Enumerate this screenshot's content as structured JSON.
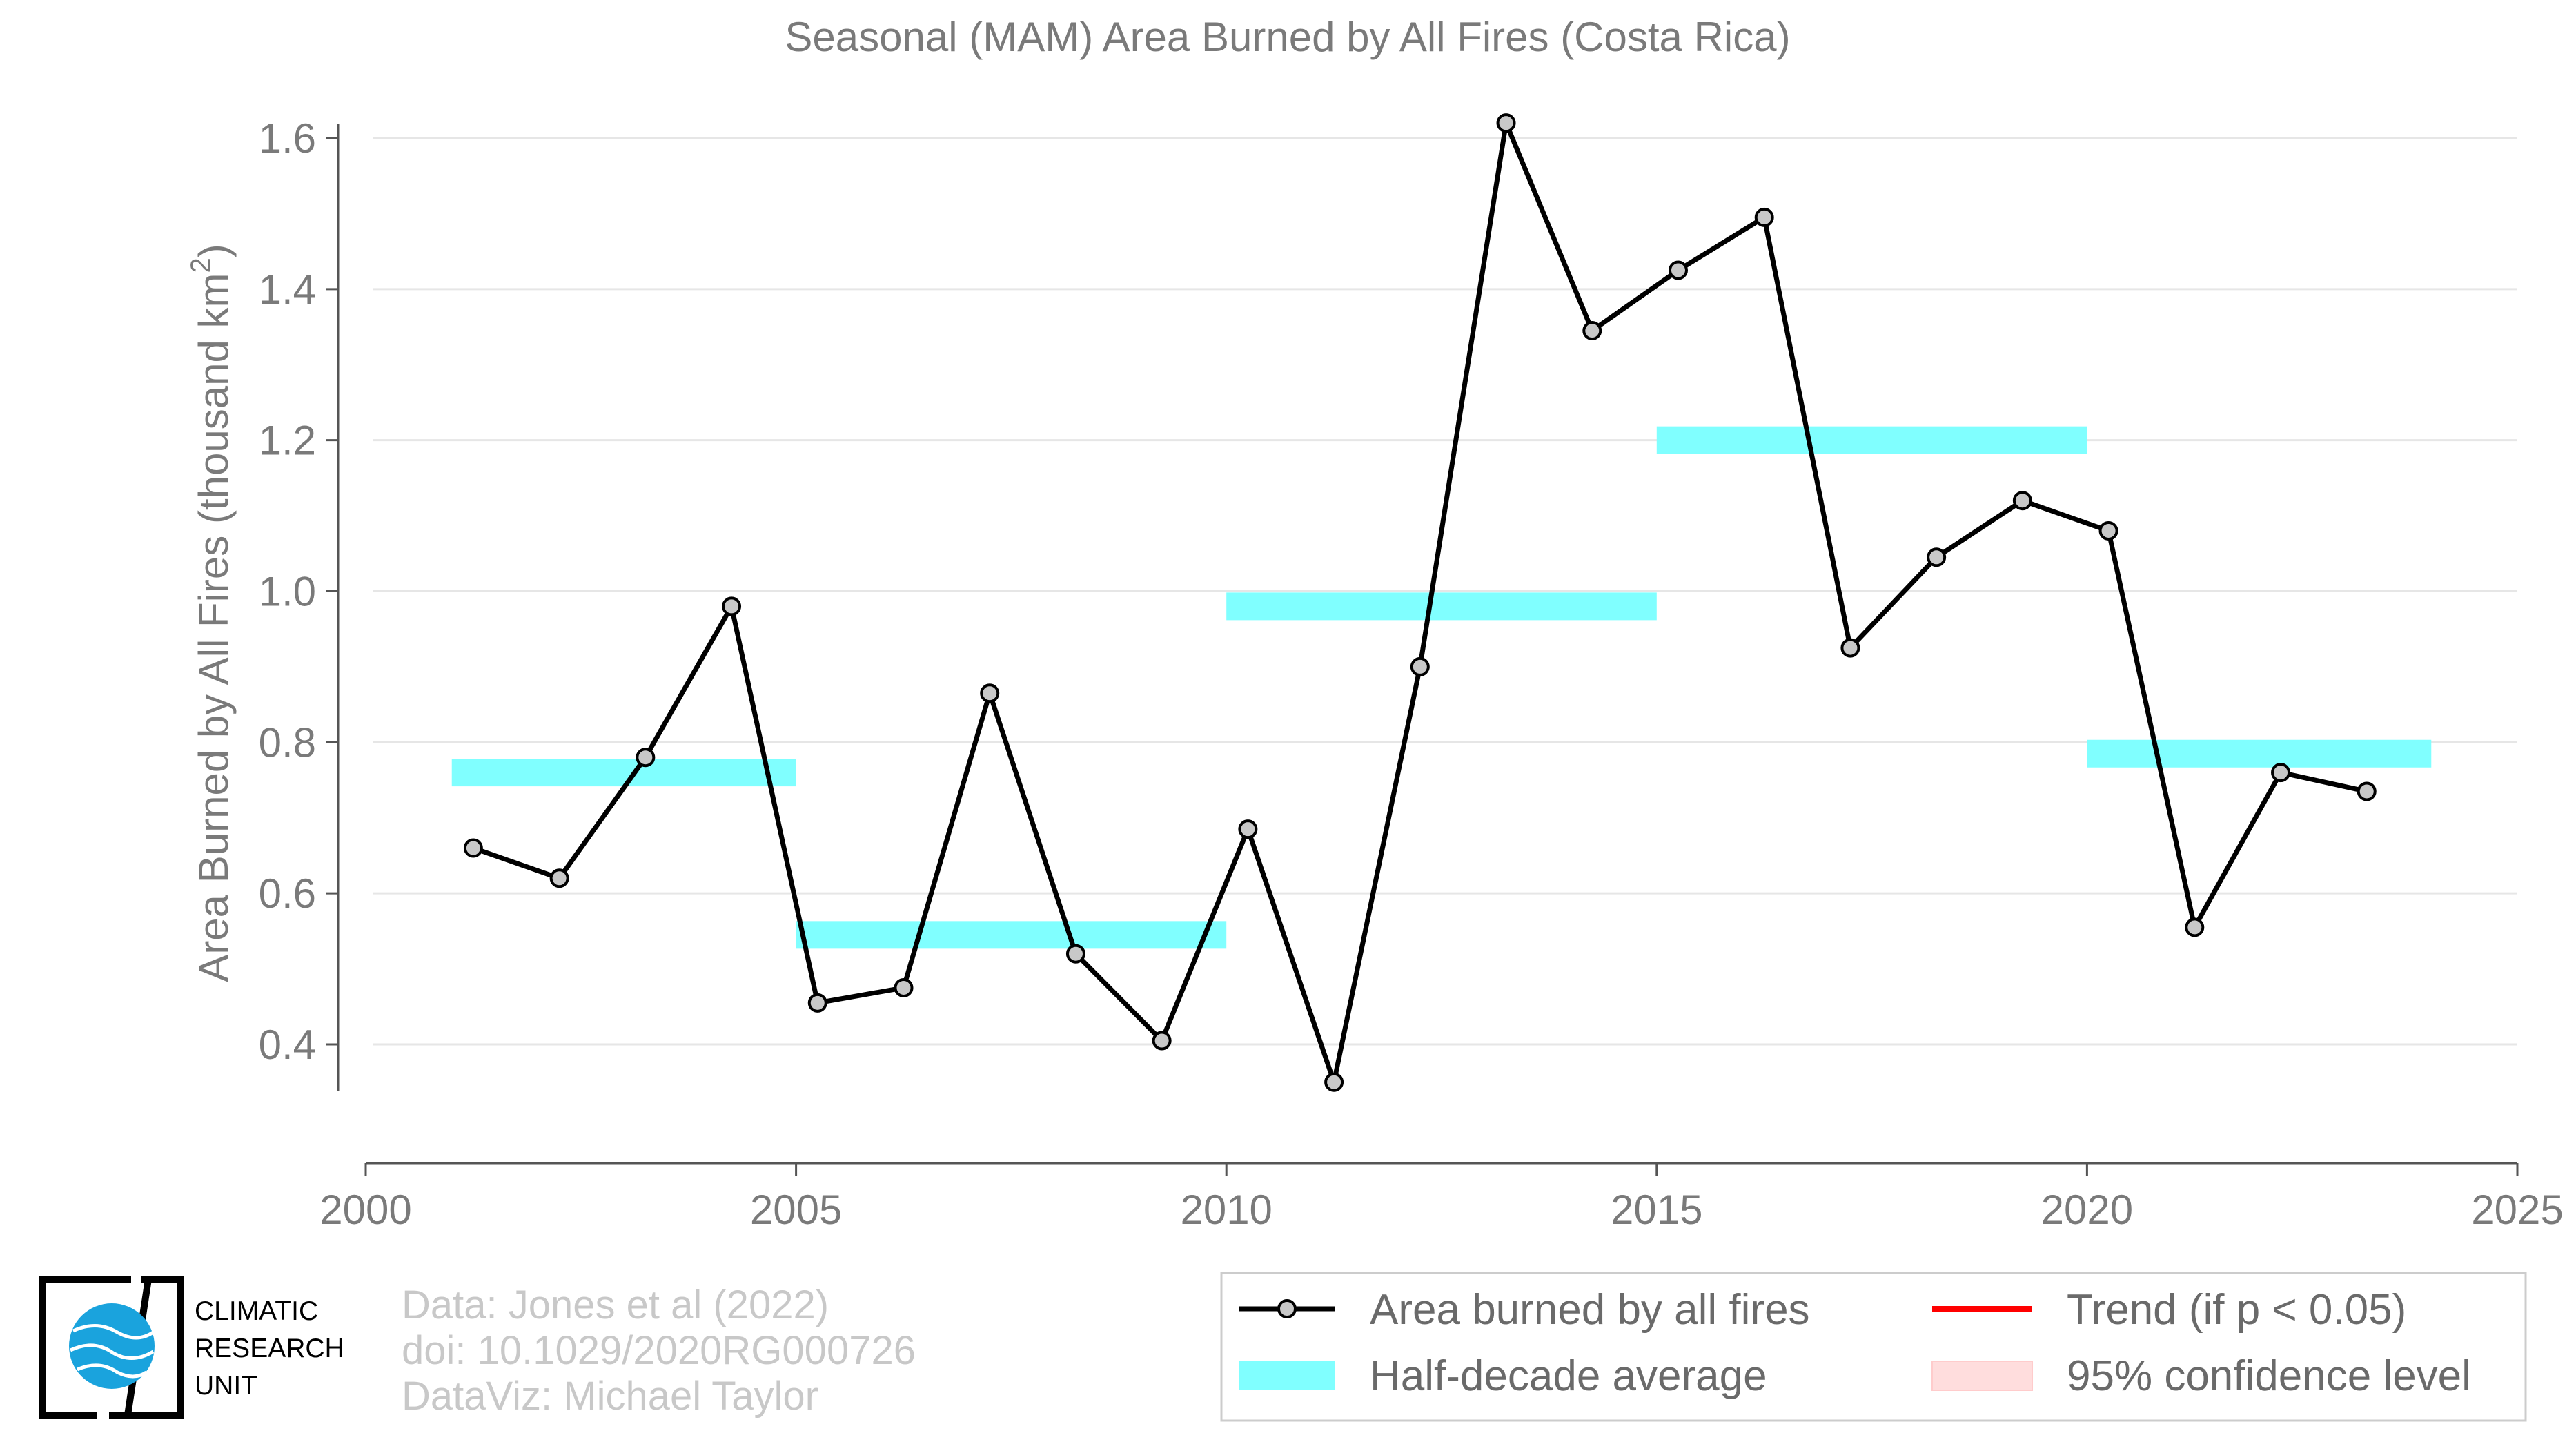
{
  "chart_data": {
    "type": "line",
    "title": "Seasonal (MAM) Area Burned by All Fires (Costa Rica)",
    "ylabel": "Area Burned by All Fires (thousand km",
    "ylabel_superscript": "2",
    "ylabel_suffix": ")",
    "xlim": [
      2000,
      2025
    ],
    "ylim": [
      0.25,
      1.65
    ],
    "xticks": [
      2000,
      2005,
      2010,
      2015,
      2020,
      2025
    ],
    "yticks": [
      0.4,
      0.6,
      0.8,
      1.0,
      1.2,
      1.4,
      1.6
    ],
    "ytick_labels": [
      "0.4",
      "0.6",
      "0.8",
      "1.0",
      "1.2",
      "1.4",
      "1.6"
    ],
    "grid": "horizontal",
    "series": [
      {
        "name": "Area burned by all fires",
        "color": "#000000",
        "x": [
          2001.25,
          2002.25,
          2003.25,
          2004.25,
          2005.25,
          2006.25,
          2007.25,
          2008.25,
          2009.25,
          2010.25,
          2011.25,
          2012.25,
          2013.25,
          2014.25,
          2015.25,
          2016.25,
          2017.25,
          2018.25,
          2019.25,
          2020.25,
          2021.25,
          2022.25,
          2023.25
        ],
        "y": [
          0.66,
          0.62,
          0.78,
          0.98,
          0.455,
          0.475,
          0.865,
          0.52,
          0.405,
          0.685,
          0.35,
          0.9,
          1.62,
          1.345,
          1.425,
          1.495,
          0.925,
          1.045,
          1.12,
          1.08,
          0.555,
          0.76,
          0.735
        ]
      }
    ],
    "half_decade_averages": {
      "name": "Half-decade average",
      "color": "#80ffff",
      "segments": [
        {
          "x_start": 2001,
          "x_end": 2005,
          "value": 0.76
        },
        {
          "x_start": 2005,
          "x_end": 2010,
          "value": 0.545
        },
        {
          "x_start": 2010,
          "x_end": 2015,
          "value": 0.98
        },
        {
          "x_start": 2015,
          "x_end": 2020,
          "value": 1.2
        },
        {
          "x_start": 2020,
          "x_end": 2024,
          "value": 0.785
        }
      ]
    },
    "legend": {
      "placement": "bottom-right",
      "entries": [
        {
          "label": "Area burned by all fires",
          "kind": "line-marker",
          "color": "#000000"
        },
        {
          "label": "Trend (if p < 0.05)",
          "kind": "line",
          "color": "#ff0000"
        },
        {
          "label": "Half-decade average",
          "kind": "band",
          "color": "#80ffff"
        },
        {
          "label": "95% confidence level",
          "kind": "band",
          "color": "#ffdddd"
        }
      ]
    }
  },
  "credits": {
    "line1": "Data: Jones et al (2022)",
    "line2": "doi: 10.1029/2020RG000726",
    "line3": "DataViz: Michael Taylor"
  },
  "logo": {
    "line1": "CLIMATIC",
    "line2": "RESEARCH",
    "line3": "UNIT"
  }
}
